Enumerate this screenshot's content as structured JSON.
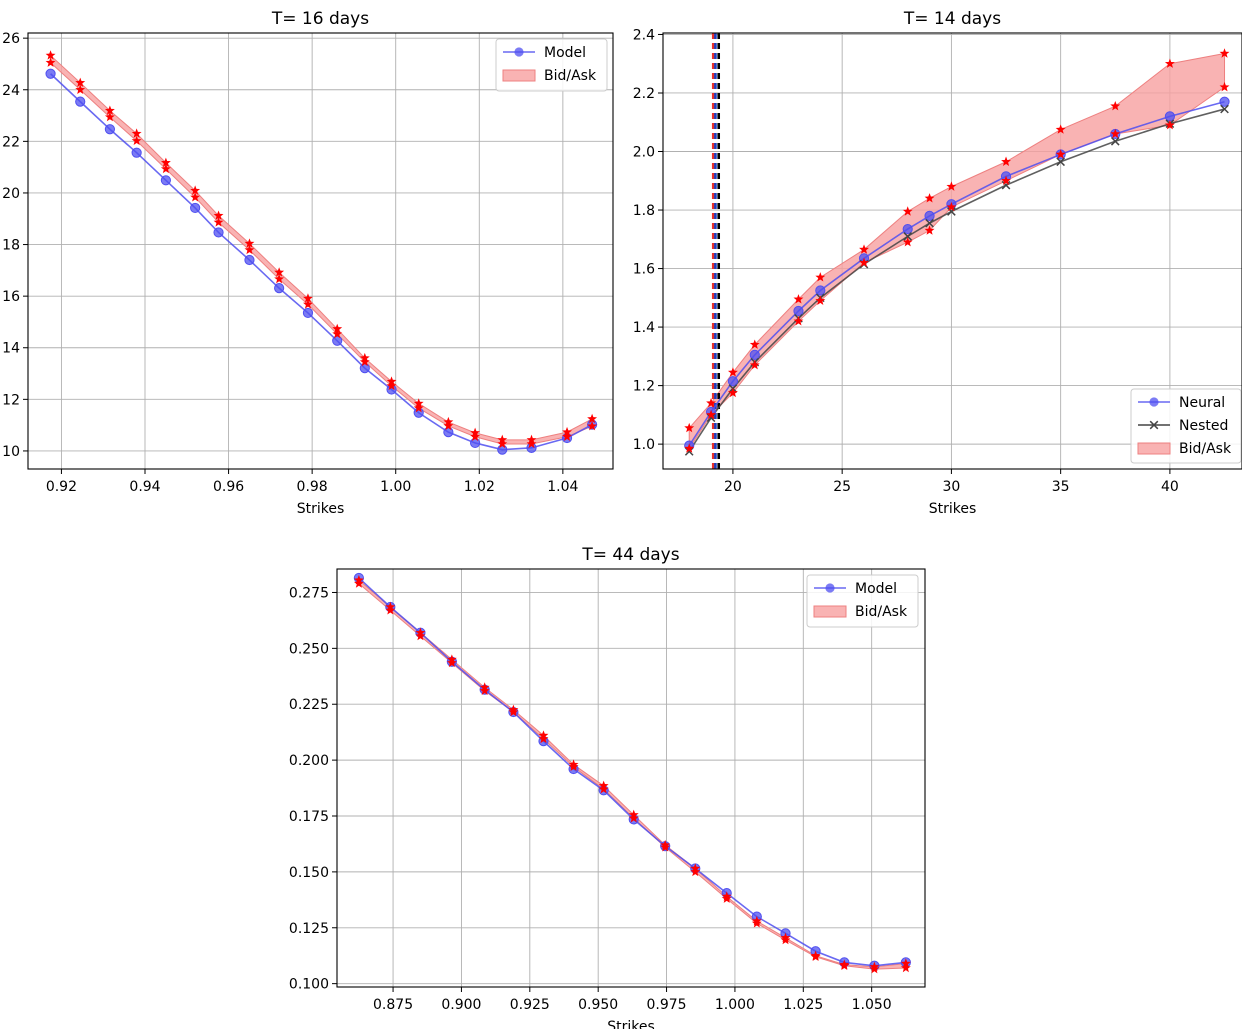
{
  "colors": {
    "model": "#4f4ff0",
    "bidask_fill": "#f8a0a0",
    "bidask_edge": "#ee8080",
    "star": "#ff0000",
    "nested": "#444444",
    "vline_red": "#e8302a",
    "vline_blue": "#1f3fbf",
    "vline_black": "#000000"
  },
  "chart_data": [
    {
      "type": "line",
      "title": "T= 16 days",
      "xlabel": "Strikes",
      "ylabel": "",
      "xlim": [
        0.912,
        1.052
      ],
      "ylim": [
        9.3,
        26.2
      ],
      "xticks": [
        0.92,
        0.94,
        0.96,
        0.98,
        1.0,
        1.02,
        1.04
      ],
      "xtick_labels": [
        "0.92",
        "0.94",
        "0.96",
        "0.98",
        "1.00",
        "1.02",
        "1.04"
      ],
      "yticks": [
        10,
        12,
        14,
        16,
        18,
        20,
        22,
        24,
        26
      ],
      "ytick_labels": [
        "10",
        "12",
        "14",
        "16",
        "18",
        "20",
        "22",
        "24",
        "26"
      ],
      "legend_position": "top-right",
      "x": [
        0.9174,
        0.9245,
        0.9316,
        0.938,
        0.945,
        0.952,
        0.9576,
        0.965,
        0.9721,
        0.979,
        0.986,
        0.9926,
        0.999,
        1.0055,
        1.0126,
        1.019,
        1.0255,
        1.0325,
        1.041,
        1.047
      ],
      "series": [
        {
          "name": "Model",
          "kind": "line-marker",
          "values": [
            24.62,
            23.54,
            22.47,
            21.56,
            20.49,
            19.42,
            18.47,
            17.4,
            16.31,
            15.35,
            14.27,
            13.21,
            12.38,
            11.48,
            10.73,
            10.31,
            10.05,
            10.12,
            10.5,
            11.02
          ]
        },
        {
          "name": "Bid/Ask",
          "kind": "band",
          "bid": [
            25.05,
            24.0,
            22.94,
            22.02,
            20.93,
            19.83,
            18.86,
            17.79,
            16.66,
            15.68,
            14.53,
            13.45,
            12.52,
            11.66,
            10.97,
            10.55,
            10.27,
            10.27,
            10.55,
            10.96
          ],
          "ask": [
            25.33,
            24.27,
            23.19,
            22.3,
            21.17,
            20.09,
            19.12,
            18.04,
            16.92,
            15.91,
            14.73,
            13.6,
            12.69,
            11.84,
            11.12,
            10.7,
            10.43,
            10.43,
            10.73,
            11.24
          ]
        }
      ]
    },
    {
      "type": "line",
      "title": "T= 14 days",
      "xlabel": "Strikes",
      "ylabel": "",
      "xlim": [
        16.8,
        43.3
      ],
      "ylim": [
        0.915,
        2.405
      ],
      "xticks": [
        20,
        25,
        30,
        35,
        40
      ],
      "xtick_labels": [
        "20",
        "25",
        "30",
        "35",
        "40"
      ],
      "yticks": [
        1.0,
        1.2,
        1.4,
        1.6,
        1.8,
        2.0,
        2.2,
        2.4
      ],
      "ytick_labels": [
        "1.0",
        "1.2",
        "1.4",
        "1.6",
        "1.8",
        "2.0",
        "2.2",
        "2.4"
      ],
      "legend_position": "bottom-right",
      "vertical_lines_x": [
        19.1,
        19.2,
        19.35
      ],
      "x": [
        18,
        19,
        20,
        21,
        23,
        24,
        26,
        28,
        29,
        30,
        32.5,
        35,
        37.5,
        40,
        42.5
      ],
      "series": [
        {
          "name": "Neural",
          "kind": "line-marker",
          "values": [
            0.995,
            1.11,
            1.215,
            1.305,
            1.455,
            1.525,
            1.635,
            1.735,
            1.78,
            1.82,
            1.915,
            1.99,
            2.06,
            2.12,
            2.17
          ]
        },
        {
          "name": "Nested",
          "kind": "line-x",
          "values": [
            0.975,
            1.09,
            1.19,
            1.28,
            1.43,
            1.5,
            1.615,
            1.71,
            1.755,
            1.795,
            1.885,
            1.965,
            2.035,
            2.095,
            2.145
          ]
        },
        {
          "name": "Bid/Ask",
          "kind": "band",
          "bid": [
            0.985,
            1.1,
            1.175,
            1.27,
            1.42,
            1.49,
            1.62,
            1.69,
            1.73,
            1.81,
            1.9,
            1.99,
            2.06,
            2.09,
            2.22
          ],
          "ask": [
            1.055,
            1.14,
            1.245,
            1.34,
            1.495,
            1.57,
            1.665,
            1.795,
            1.84,
            1.88,
            1.965,
            2.075,
            2.155,
            2.3,
            2.335
          ]
        }
      ]
    },
    {
      "type": "line",
      "title": "T= 44 days",
      "xlabel": "Strikes",
      "ylabel": "",
      "xlim": [
        0.8545,
        1.0695
      ],
      "ylim": [
        0.0985,
        0.2855
      ],
      "xticks": [
        0.875,
        0.9,
        0.925,
        0.95,
        0.975,
        1.0,
        1.025,
        1.05
      ],
      "xtick_labels": [
        "0.875",
        "0.900",
        "0.925",
        "0.950",
        "0.975",
        "1.000",
        "1.025",
        "1.050"
      ],
      "yticks": [
        0.1,
        0.125,
        0.15,
        0.175,
        0.2,
        0.225,
        0.25,
        0.275
      ],
      "ytick_labels": [
        "0.100",
        "0.125",
        "0.150",
        "0.175",
        "0.200",
        "0.225",
        "0.250",
        "0.275"
      ],
      "legend_position": "top-right",
      "x": [
        0.8625,
        0.874,
        0.885,
        0.8965,
        0.9085,
        0.919,
        0.93,
        0.941,
        0.952,
        0.963,
        0.9745,
        0.9855,
        0.997,
        1.008,
        1.0185,
        1.0295,
        1.04,
        1.051,
        1.0625
      ],
      "series": [
        {
          "name": "Model",
          "kind": "line-marker",
          "values": [
            0.2815,
            0.2685,
            0.257,
            0.244,
            0.2315,
            0.2215,
            0.2085,
            0.196,
            0.1865,
            0.1735,
            0.1615,
            0.1515,
            0.1405,
            0.13,
            0.1225,
            0.1145,
            0.1095,
            0.108,
            0.1095
          ]
        },
        {
          "name": "Bid/Ask",
          "kind": "band",
          "bid": [
            0.279,
            0.267,
            0.2555,
            0.2435,
            0.231,
            0.2215,
            0.2095,
            0.197,
            0.187,
            0.174,
            0.161,
            0.15,
            0.138,
            0.127,
            0.1195,
            0.112,
            0.108,
            0.1065,
            0.107
          ],
          "ask": [
            0.2805,
            0.2685,
            0.257,
            0.245,
            0.2325,
            0.2225,
            0.211,
            0.198,
            0.1885,
            0.1755,
            0.162,
            0.1515,
            0.139,
            0.128,
            0.1205,
            0.1125,
            0.1085,
            0.1075,
            0.109
          ]
        }
      ]
    }
  ]
}
